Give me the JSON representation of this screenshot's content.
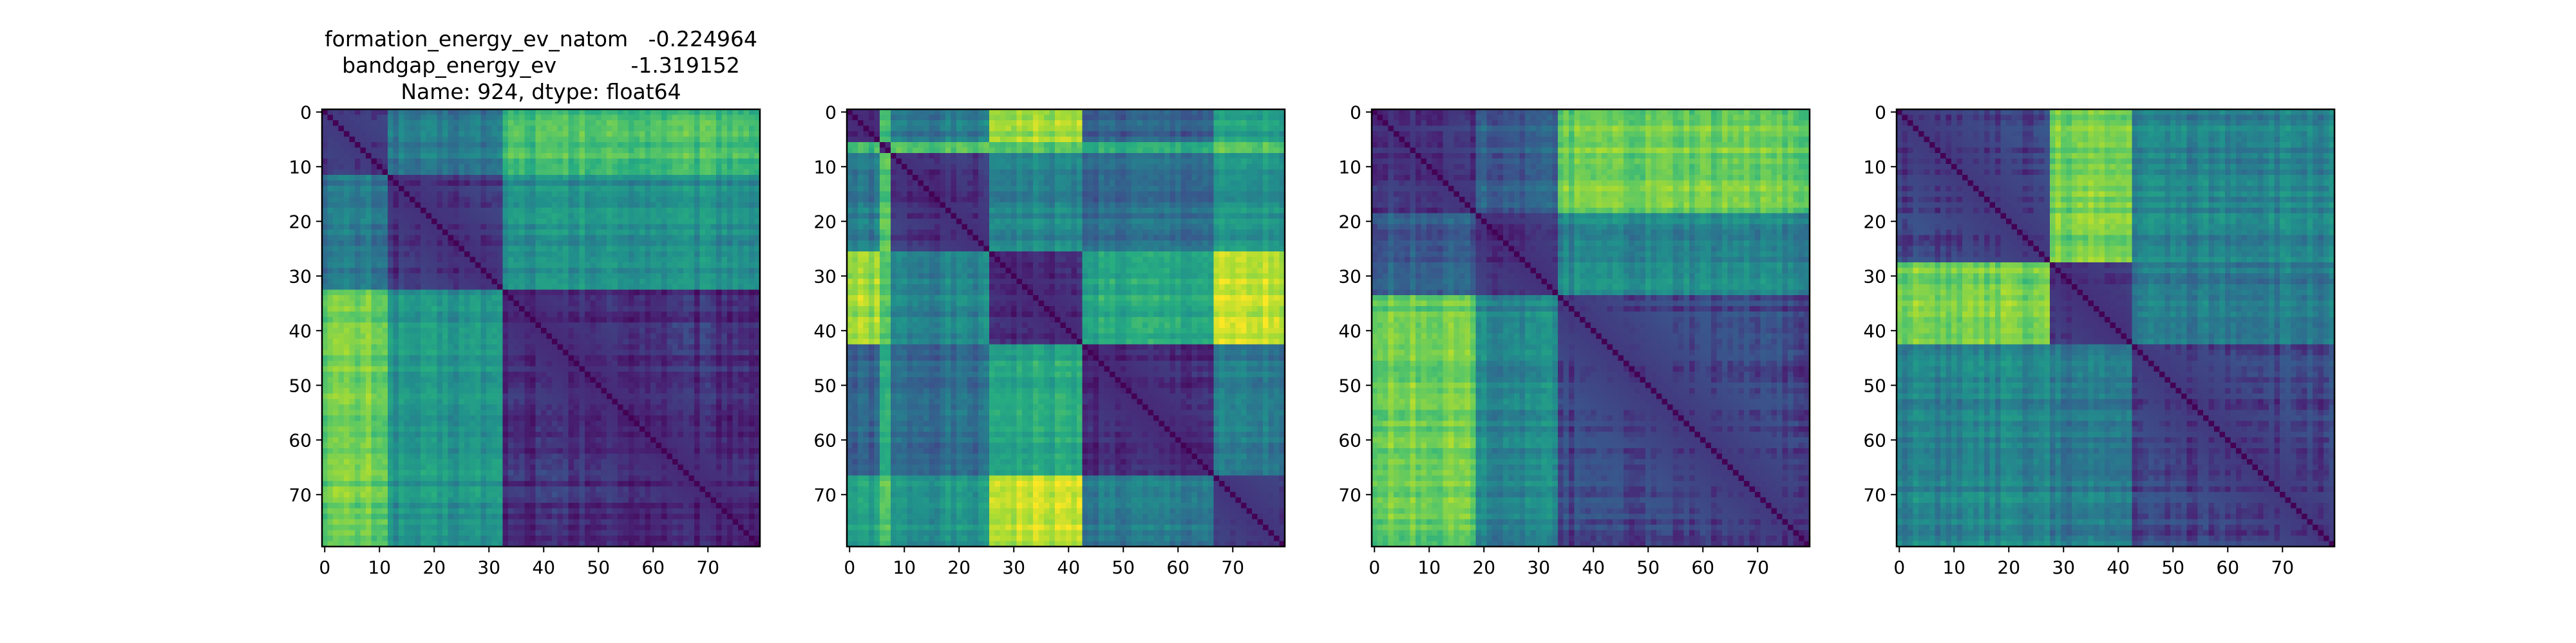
{
  "title_lines": [
    "formation_energy_ev_natom   -0.224964",
    "bandgap_energy_ev           -1.319152",
    "Name: 924, dtype: float64"
  ],
  "colormap": "viridis",
  "colors": {
    "low": "#440154",
    "mid": "#21918c",
    "high": "#fde725",
    "frame": "#000000"
  },
  "chart_data": [
    {
      "type": "heatmap",
      "title": "formation_energy_ev_natom   -0.224964 / bandgap_energy_ev           -1.319152 / Name: 924, dtype: float64",
      "size": 80,
      "x_ticks": [
        0,
        10,
        20,
        30,
        40,
        50,
        60,
        70
      ],
      "y_ticks": [
        0,
        10,
        20,
        30,
        40,
        50,
        60,
        70
      ],
      "xlim": [
        -0.5,
        79.5
      ],
      "ylim": [
        79.5,
        -0.5
      ],
      "blocks": [
        0,
        12,
        33,
        80
      ],
      "block_levels": [
        [
          0.22,
          0.4,
          0.7
        ],
        [
          0.4,
          0.18,
          0.5
        ],
        [
          0.78,
          0.52,
          0.15
        ]
      ]
    },
    {
      "type": "heatmap",
      "title": "",
      "size": 80,
      "x_ticks": [
        0,
        10,
        20,
        30,
        40,
        50,
        60,
        70
      ],
      "y_ticks": [
        0,
        10,
        20,
        30,
        40,
        50,
        60,
        70
      ],
      "xlim": [
        -0.5,
        79.5
      ],
      "ylim": [
        79.5,
        -0.5
      ],
      "blocks": [
        0,
        6,
        8,
        26,
        43,
        67,
        80
      ],
      "block_levels": [
        [
          0.15,
          0.65,
          0.4,
          0.85,
          0.3,
          0.55
        ],
        [
          0.65,
          0.15,
          0.7,
          0.7,
          0.6,
          0.7
        ],
        [
          0.4,
          0.7,
          0.18,
          0.45,
          0.35,
          0.5
        ],
        [
          0.85,
          0.7,
          0.45,
          0.15,
          0.6,
          0.9
        ],
        [
          0.3,
          0.6,
          0.35,
          0.6,
          0.15,
          0.4
        ],
        [
          0.55,
          0.7,
          0.5,
          0.9,
          0.4,
          0.2
        ]
      ]
    },
    {
      "type": "heatmap",
      "title": "",
      "size": 80,
      "x_ticks": [
        0,
        10,
        20,
        30,
        40,
        50,
        60,
        70
      ],
      "y_ticks": [
        0,
        10,
        20,
        30,
        40,
        50,
        60,
        70
      ],
      "xlim": [
        -0.5,
        79.5
      ],
      "ylim": [
        79.5,
        -0.5
      ],
      "blocks": [
        0,
        19,
        34,
        80
      ],
      "block_levels": [
        [
          0.2,
          0.3,
          0.78
        ],
        [
          0.3,
          0.18,
          0.45
        ],
        [
          0.78,
          0.45,
          0.22
        ]
      ]
    },
    {
      "type": "heatmap",
      "title": "",
      "size": 80,
      "x_ticks": [
        0,
        10,
        20,
        30,
        40,
        50,
        60,
        70
      ],
      "y_ticks": [
        0,
        10,
        20,
        30,
        40,
        50,
        60,
        70
      ],
      "xlim": [
        -0.5,
        79.5
      ],
      "ylim": [
        79.5,
        -0.5
      ],
      "blocks": [
        0,
        28,
        43,
        80
      ],
      "block_levels": [
        [
          0.22,
          0.78,
          0.45
        ],
        [
          0.78,
          0.18,
          0.4
        ],
        [
          0.45,
          0.4,
          0.22
        ]
      ]
    }
  ]
}
